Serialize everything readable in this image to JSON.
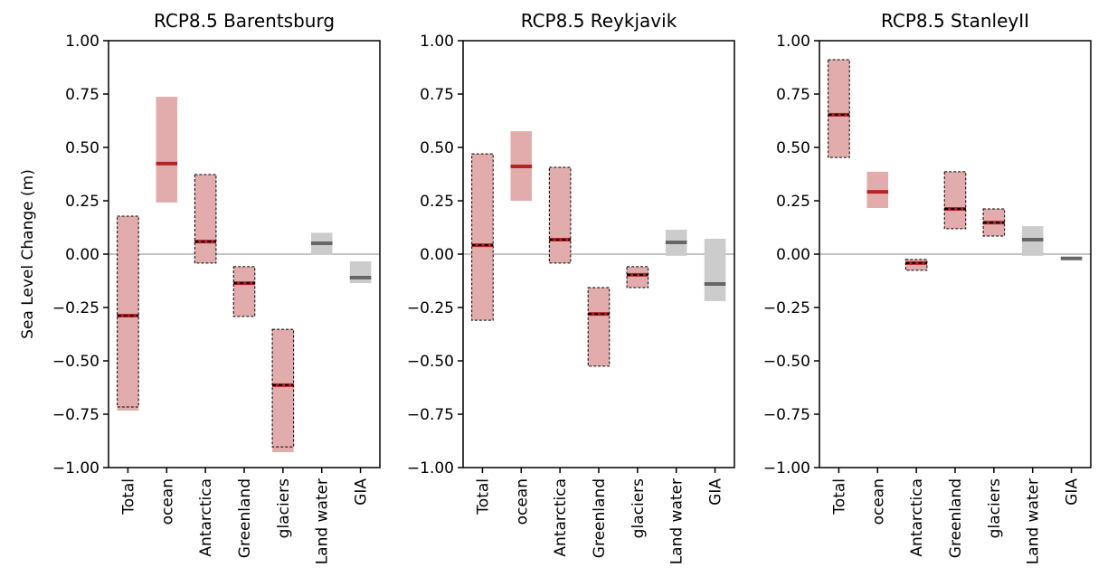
{
  "chart_data": [
    {
      "type": "range",
      "title": "RCP8.5 Barentsburg",
      "ylabel": "Sea Level Change (m)",
      "categories": [
        "Total",
        "ocean",
        "Antarctica",
        "Greenland",
        "glaciers",
        "Land water",
        "GIA"
      ],
      "low": [
        -0.733,
        0.242,
        -0.042,
        -0.292,
        -0.928,
        -0.004,
        -0.136
      ],
      "high": [
        0.178,
        0.737,
        0.373,
        -0.059,
        -0.352,
        0.1,
        -0.034
      ],
      "median": [
        -0.288,
        0.424,
        0.059,
        -0.136,
        -0.614,
        0.051,
        -0.11
      ],
      "dashed_box": [
        [
          -0.716,
          0.178
        ],
        null,
        [
          -0.042,
          0.373
        ],
        [
          -0.292,
          -0.059
        ],
        [
          -0.903,
          -0.352
        ],
        null,
        null
      ],
      "colors": [
        "#e2acac",
        "#e2acac",
        "#e2acac",
        "#e2acac",
        "#e2acac",
        "#cccccc",
        "#cccccc"
      ],
      "median_colors": [
        "#b52424",
        "#b52424",
        "#b52424",
        "#b52424",
        "#b52424",
        "#666666",
        "#666666"
      ],
      "reference_line": 0,
      "ylim": [
        -1,
        1
      ],
      "yticks": [
        {
          "value": -1,
          "label": "−1.00"
        },
        {
          "value": -0.75,
          "label": "−0.75"
        },
        {
          "value": -0.5,
          "label": "−0.50"
        },
        {
          "value": -0.25,
          "label": "−0.25"
        },
        {
          "value": 0,
          "label": "0.00"
        },
        {
          "value": 0.25,
          "label": "0.25"
        },
        {
          "value": 0.5,
          "label": "0.50"
        },
        {
          "value": 0.75,
          "label": "0.75"
        },
        {
          "value": 1,
          "label": "1.00"
        }
      ]
    },
    {
      "type": "range",
      "title": "RCP8.5 Reykjavik",
      "categories": [
        "Total",
        "ocean",
        "Antarctica",
        "Greenland",
        "glaciers",
        "Land water",
        "GIA"
      ],
      "low": [
        -0.31,
        0.25,
        -0.042,
        -0.525,
        -0.157,
        -0.008,
        -0.22
      ],
      "high": [
        0.47,
        0.576,
        0.407,
        -0.157,
        -0.059,
        0.114,
        0.072
      ],
      "median": [
        0.042,
        0.411,
        0.068,
        -0.28,
        -0.097,
        0.055,
        -0.14
      ],
      "dashed_box": [
        [
          -0.31,
          0.47
        ],
        null,
        [
          -0.042,
          0.407
        ],
        [
          -0.525,
          -0.157
        ],
        [
          -0.157,
          -0.059
        ],
        null,
        null
      ],
      "colors": [
        "#e2acac",
        "#e2acac",
        "#e2acac",
        "#e2acac",
        "#e2acac",
        "#cccccc",
        "#cccccc"
      ],
      "median_colors": [
        "#b52424",
        "#b52424",
        "#b52424",
        "#b52424",
        "#b52424",
        "#666666",
        "#666666"
      ],
      "reference_line": 0,
      "ylim": [
        -1,
        1
      ],
      "yticks": [
        {
          "value": -1,
          "label": "−1.00"
        },
        {
          "value": -0.75,
          "label": "−0.75"
        },
        {
          "value": -0.5,
          "label": "−0.50"
        },
        {
          "value": -0.25,
          "label": "−0.25"
        },
        {
          "value": 0,
          "label": "0.00"
        },
        {
          "value": 0.25,
          "label": "0.25"
        },
        {
          "value": 0.5,
          "label": "0.50"
        },
        {
          "value": 0.75,
          "label": "0.75"
        },
        {
          "value": 1,
          "label": "1.00"
        }
      ]
    },
    {
      "type": "range",
      "title": "RCP8.5 StanleyII",
      "categories": [
        "Total",
        "ocean",
        "Antarctica",
        "Greenland",
        "glaciers",
        "Land water",
        "GIA"
      ],
      "low": [
        0.453,
        0.216,
        -0.076,
        0.119,
        0.085,
        -0.008,
        -0.025
      ],
      "high": [
        0.911,
        0.386,
        -0.025,
        0.386,
        0.212,
        0.131,
        -0.013
      ],
      "median": [
        0.653,
        0.292,
        -0.042,
        0.212,
        0.148,
        0.068,
        -0.02
      ],
      "dashed_box": [
        [
          0.453,
          0.911
        ],
        null,
        [
          -0.076,
          -0.025
        ],
        [
          0.119,
          0.386
        ],
        [
          0.085,
          0.212
        ],
        null,
        null
      ],
      "colors": [
        "#e2acac",
        "#e2acac",
        "#e2acac",
        "#e2acac",
        "#e2acac",
        "#cccccc",
        "#cccccc"
      ],
      "median_colors": [
        "#b52424",
        "#b52424",
        "#b52424",
        "#b52424",
        "#b52424",
        "#666666",
        "#666666"
      ],
      "reference_line": 0,
      "ylim": [
        -1,
        1
      ],
      "yticks": [
        {
          "value": -1,
          "label": "−1.00"
        },
        {
          "value": -0.75,
          "label": "−0.75"
        },
        {
          "value": -0.5,
          "label": "−0.50"
        },
        {
          "value": -0.25,
          "label": "−0.25"
        },
        {
          "value": 0,
          "label": "0.00"
        },
        {
          "value": 0.25,
          "label": "0.25"
        },
        {
          "value": 0.5,
          "label": "0.50"
        },
        {
          "value": 0.75,
          "label": "0.75"
        },
        {
          "value": 1,
          "label": "1.00"
        }
      ]
    }
  ]
}
